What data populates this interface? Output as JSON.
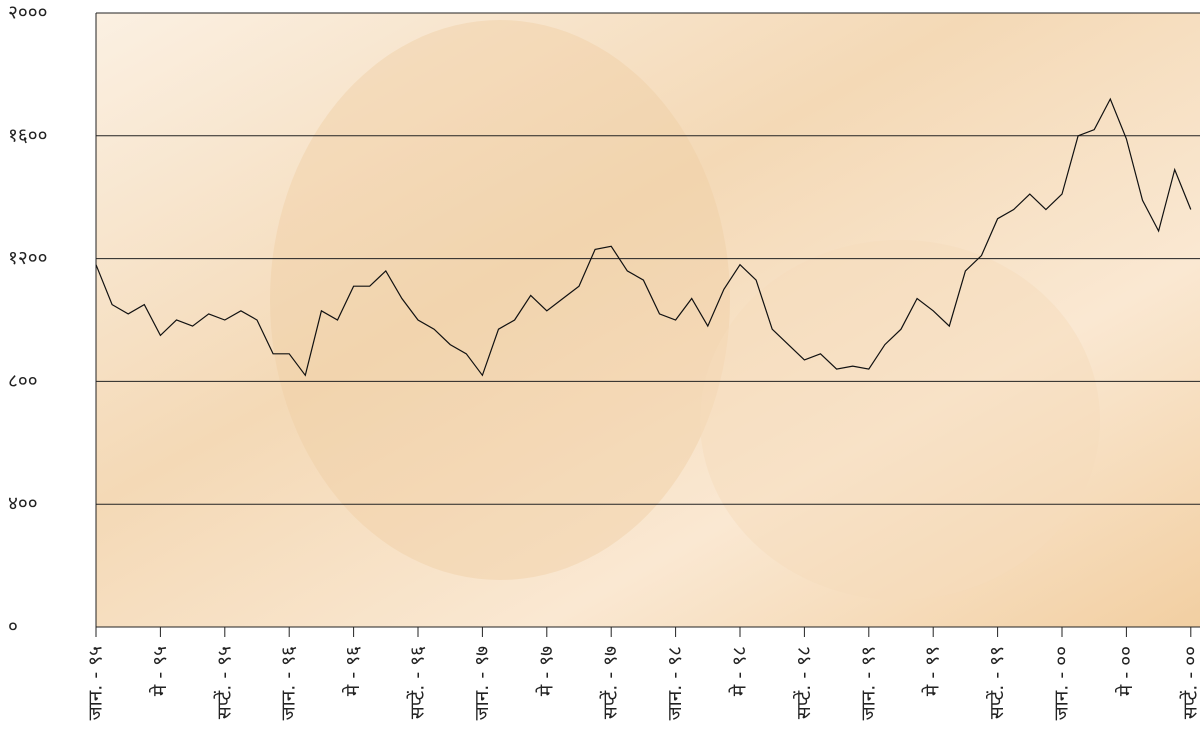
{
  "chart_data": {
    "type": "line",
    "categories": [
      "जान. - ९५",
      null,
      null,
      null,
      "मे - ९५",
      null,
      null,
      null,
      "सप्टें. - ९५",
      null,
      null,
      null,
      "जान. - ९६",
      null,
      null,
      null,
      "मे - ९६",
      null,
      null,
      null,
      "सप्टें. - ९६",
      null,
      null,
      null,
      "जान. - ९७",
      null,
      null,
      null,
      "मे - ९७",
      null,
      null,
      null,
      "सप्टें. - ९७",
      null,
      null,
      null,
      "जान. - ९८",
      null,
      null,
      null,
      "मे - ९८",
      null,
      null,
      null,
      "सप्टें. - ९८",
      null,
      null,
      null,
      "जान. - ९९",
      null,
      null,
      null,
      "मे - ९९",
      null,
      null,
      null,
      "सप्टें. - ९९",
      null,
      null,
      null,
      "जान. - ००",
      null,
      null,
      null,
      "मे - ००",
      null,
      null,
      null,
      "सप्टें. - ००"
    ],
    "values": [
      1180,
      1050,
      1020,
      1050,
      950,
      1000,
      980,
      1020,
      1000,
      1030,
      1000,
      890,
      890,
      820,
      1030,
      1000,
      1110,
      1110,
      1160,
      1070,
      1000,
      970,
      920,
      890,
      820,
      970,
      1000,
      1080,
      1030,
      1070,
      1110,
      1230,
      1240,
      1160,
      1130,
      1020,
      1000,
      1070,
      980,
      1100,
      1180,
      1130,
      970,
      920,
      870,
      890,
      840,
      850,
      840,
      920,
      970,
      1070,
      1030,
      980,
      1160,
      1210,
      1330,
      1360,
      1410,
      1360,
      1410,
      1600,
      1620,
      1720,
      1590,
      1390,
      1290,
      1490,
      1360
    ],
    "color": "#111111",
    "ylim": [
      0,
      2000
    ],
    "yticks": [
      {
        "value": 0,
        "label": "०"
      },
      {
        "value": 400,
        "label": "४००"
      },
      {
        "value": 800,
        "label": "८००"
      },
      {
        "value": 1200,
        "label": "१२००"
      },
      {
        "value": 1600,
        "label": "१६००"
      },
      {
        "value": 2000,
        "label": "२०००"
      }
    ],
    "grid": true
  }
}
